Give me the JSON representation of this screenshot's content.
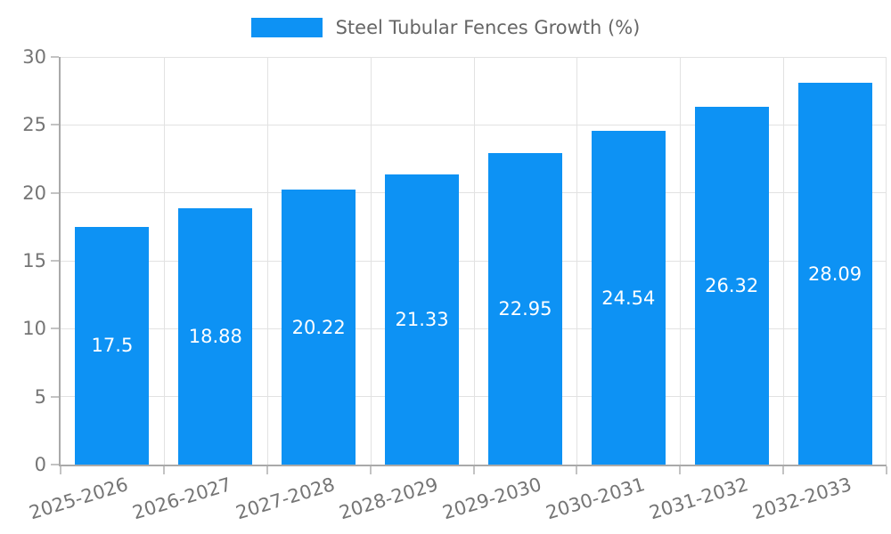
{
  "chart_data": {
    "type": "bar",
    "title": "Steel Tubular Fences Growth (%)",
    "legend": {
      "label": "Steel Tubular Fences Growth (%)",
      "position": "top-center"
    },
    "categories": [
      "2025-2026",
      "2026-2027",
      "2027-2028",
      "2028-2029",
      "2029-2030",
      "2030-2031",
      "2031-2032",
      "2032-2033"
    ],
    "values": [
      17.5,
      18.88,
      20.22,
      21.33,
      22.95,
      24.54,
      26.32,
      28.09
    ],
    "value_labels": [
      "17.5",
      "18.88",
      "20.22",
      "21.33",
      "22.95",
      "24.54",
      "26.32",
      "28.09"
    ],
    "xlabel": "",
    "ylabel": "",
    "ylim": [
      0,
      30
    ],
    "ytick_step": 5,
    "ytick_labels": [
      "0",
      "5",
      "10",
      "15",
      "20",
      "25",
      "30"
    ],
    "grid": true,
    "colors": {
      "bar": "#0d92f4",
      "bar_label": "#ffffff",
      "axis_label": "#757575",
      "legend_text": "#666666",
      "gridline": "#e2e2e2",
      "axis_line": "#a9a9a9",
      "tick": "#c3c3c3",
      "background": "#ffffff"
    }
  }
}
